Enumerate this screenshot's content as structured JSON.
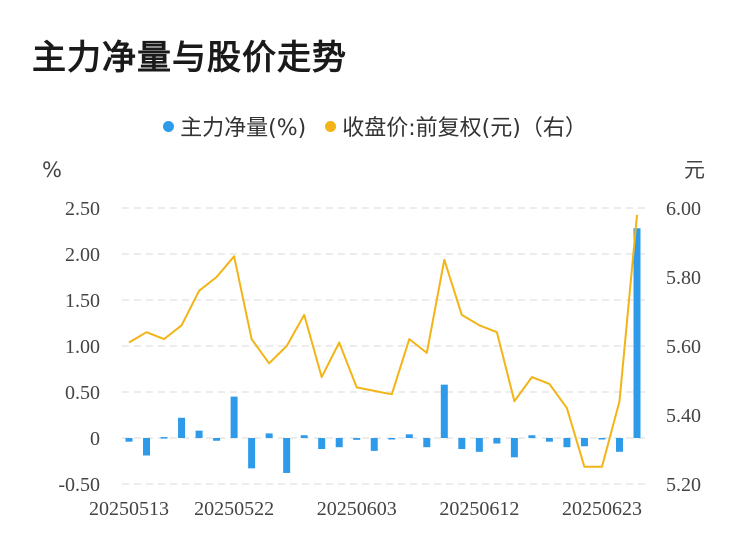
{
  "title": "主力净量与股价走势",
  "legend": {
    "left_label": "主力净量(%)",
    "right_label": "收盘价:前复权(元)（右）"
  },
  "colors": {
    "bar": "#2e9bea",
    "line": "#f2b416",
    "grid": "#e6e6e6"
  },
  "chart_data": {
    "type": "bar+line",
    "title": "主力净量与股价走势",
    "y_left": {
      "unit": "%",
      "range": [
        -0.5,
        2.5
      ],
      "ticks": [
        "-0.50",
        "0",
        "0.50",
        "1.00",
        "1.50",
        "2.00",
        "2.50"
      ],
      "tick_values": [
        -0.5,
        0,
        0.5,
        1.0,
        1.5,
        2.0,
        2.5
      ]
    },
    "y_right": {
      "unit": "元",
      "range": [
        5.2,
        6.0
      ],
      "ticks": [
        "5.20",
        "5.40",
        "5.60",
        "5.80",
        "6.00"
      ],
      "tick_values": [
        5.2,
        5.4,
        5.6,
        5.8,
        6.0
      ]
    },
    "x_ticks": [
      "20250513",
      "20250522",
      "20250603",
      "20250612",
      "20250623"
    ],
    "x_tick_index": [
      0,
      6,
      13,
      20,
      27
    ],
    "grid": true,
    "series": [
      {
        "name": "主力净量(%)",
        "type": "bar",
        "axis": "left",
        "values": [
          -0.04,
          -0.19,
          0.01,
          0.22,
          0.08,
          -0.03,
          0.45,
          -0.33,
          0.05,
          -0.38,
          0.03,
          -0.12,
          -0.1,
          -0.02,
          -0.14,
          0.0,
          0.04,
          -0.1,
          0.58,
          -0.12,
          -0.15,
          -0.06,
          -0.21,
          0.03,
          -0.04,
          -0.1,
          -0.09,
          0.0,
          -0.15,
          2.28
        ]
      },
      {
        "name": "收盘价:前复权(元)（右）",
        "type": "line",
        "axis": "right",
        "values": [
          5.61,
          5.64,
          5.62,
          5.66,
          5.76,
          5.8,
          5.86,
          5.62,
          5.55,
          5.6,
          5.69,
          5.51,
          5.61,
          5.48,
          5.47,
          5.46,
          5.62,
          5.58,
          5.85,
          5.69,
          5.66,
          5.64,
          5.44,
          5.51,
          5.49,
          5.42,
          5.25,
          5.25,
          5.44,
          5.98
        ]
      }
    ]
  }
}
